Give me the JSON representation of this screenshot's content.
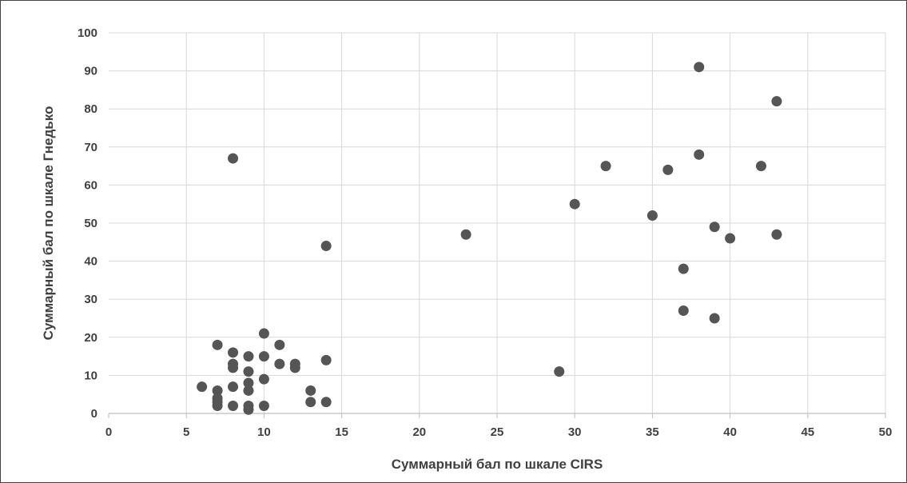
{
  "chart_data": {
    "type": "scatter",
    "xlabel": "Суммарный бал по шкале CIRS",
    "ylabel": "Суммарный бал по шкале Гнедько",
    "xlim": [
      0,
      50
    ],
    "ylim": [
      0,
      100
    ],
    "x_ticks": [
      0,
      5,
      10,
      15,
      20,
      25,
      30,
      35,
      40,
      45,
      50
    ],
    "y_ticks": [
      0,
      10,
      20,
      30,
      40,
      50,
      60,
      70,
      80,
      90,
      100
    ],
    "grid": true,
    "legend": "none",
    "marker_color": "#555555",
    "points": [
      {
        "x": 6,
        "y": 7
      },
      {
        "x": 7,
        "y": 2
      },
      {
        "x": 7,
        "y": 3
      },
      {
        "x": 7,
        "y": 4
      },
      {
        "x": 7,
        "y": 6
      },
      {
        "x": 7,
        "y": 18
      },
      {
        "x": 8,
        "y": 2
      },
      {
        "x": 8,
        "y": 7
      },
      {
        "x": 8,
        "y": 12
      },
      {
        "x": 8,
        "y": 13
      },
      {
        "x": 8,
        "y": 16
      },
      {
        "x": 8,
        "y": 67
      },
      {
        "x": 9,
        "y": 1
      },
      {
        "x": 9,
        "y": 2
      },
      {
        "x": 9,
        "y": 6
      },
      {
        "x": 9,
        "y": 8
      },
      {
        "x": 9,
        "y": 11
      },
      {
        "x": 9,
        "y": 15
      },
      {
        "x": 10,
        "y": 2
      },
      {
        "x": 10,
        "y": 9
      },
      {
        "x": 10,
        "y": 15
      },
      {
        "x": 10,
        "y": 21
      },
      {
        "x": 11,
        "y": 13
      },
      {
        "x": 11,
        "y": 18
      },
      {
        "x": 12,
        "y": 12
      },
      {
        "x": 12,
        "y": 13
      },
      {
        "x": 13,
        "y": 3
      },
      {
        "x": 13,
        "y": 6
      },
      {
        "x": 14,
        "y": 3
      },
      {
        "x": 14,
        "y": 14
      },
      {
        "x": 14,
        "y": 44
      },
      {
        "x": 23,
        "y": 47
      },
      {
        "x": 29,
        "y": 11
      },
      {
        "x": 30,
        "y": 55
      },
      {
        "x": 32,
        "y": 65
      },
      {
        "x": 35,
        "y": 52
      },
      {
        "x": 36,
        "y": 64
      },
      {
        "x": 37,
        "y": 27
      },
      {
        "x": 37,
        "y": 38
      },
      {
        "x": 38,
        "y": 68
      },
      {
        "x": 38,
        "y": 91
      },
      {
        "x": 39,
        "y": 25
      },
      {
        "x": 39,
        "y": 49
      },
      {
        "x": 40,
        "y": 46
      },
      {
        "x": 42,
        "y": 65
      },
      {
        "x": 43,
        "y": 47
      },
      {
        "x": 43,
        "y": 82
      }
    ]
  }
}
